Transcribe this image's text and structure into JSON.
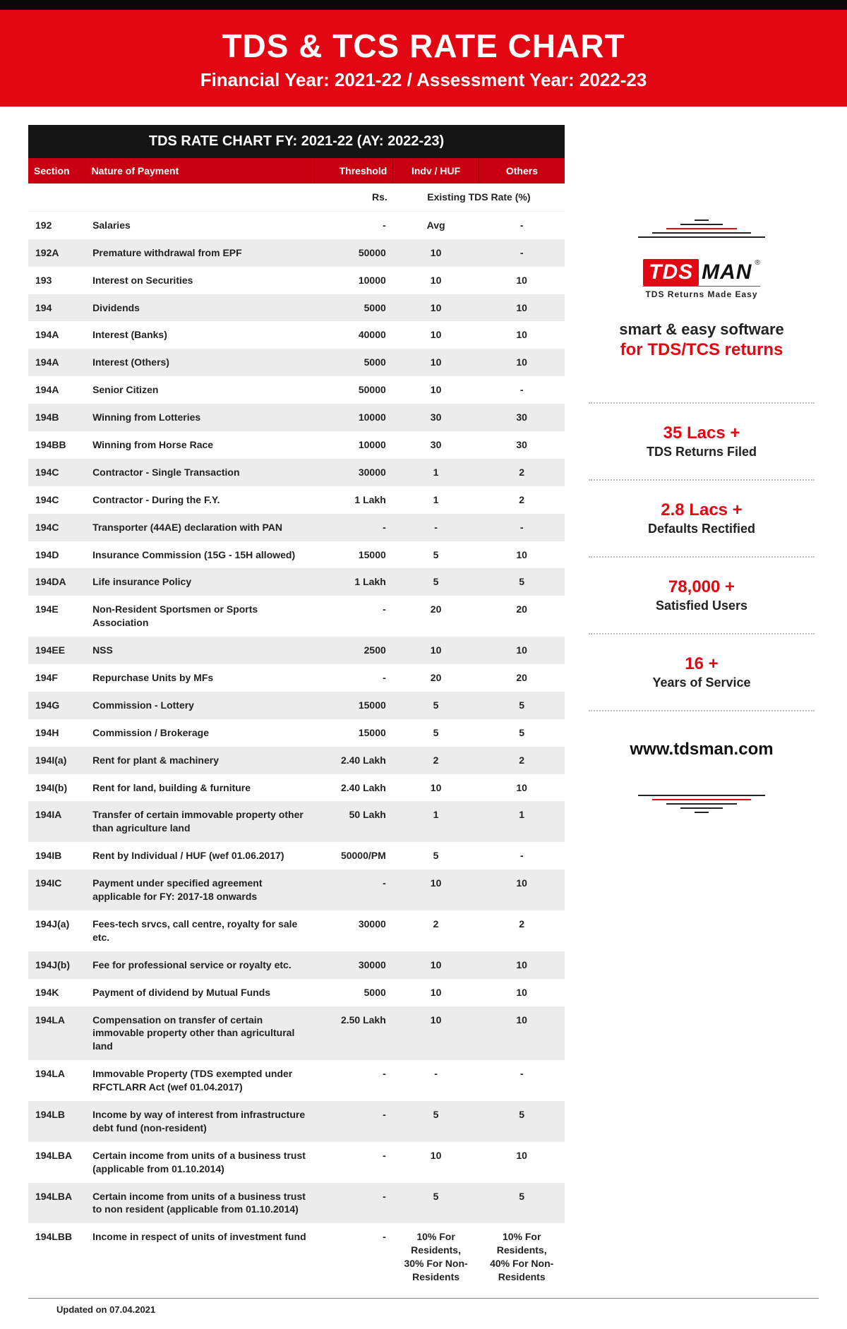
{
  "colors": {
    "brand_red": "#e30613",
    "header_black": "#141414",
    "row_alt": "#ececec",
    "thead_red": "#c90012"
  },
  "banner": {
    "title": "TDS & TCS RATE CHART",
    "subtitle": "Financial Year: 2021-22 / Assessment Year: 2022-23"
  },
  "table": {
    "title": "TDS RATE CHART FY: 2021-22 (AY: 2022-23)",
    "columns": [
      "Section",
      "Nature of Payment",
      "Threshold",
      "Indv / HUF",
      "Others"
    ],
    "subhead": {
      "threshold": "Rs.",
      "rates": "Existing TDS Rate (%)"
    },
    "rows": [
      {
        "s": "192",
        "n": "Salaries",
        "t": "-",
        "i": "Avg",
        "o": "-"
      },
      {
        "s": "192A",
        "n": "Premature withdrawal from EPF",
        "t": "50000",
        "i": "10",
        "o": "-"
      },
      {
        "s": "193",
        "n": "Interest on Securities",
        "t": "10000",
        "i": "10",
        "o": "10"
      },
      {
        "s": "194",
        "n": "Dividends",
        "t": "5000",
        "i": "10",
        "o": "10"
      },
      {
        "s": "194A",
        "n": "Interest (Banks)",
        "t": "40000",
        "i": "10",
        "o": "10"
      },
      {
        "s": "194A",
        "n": "Interest (Others)",
        "t": "5000",
        "i": "10",
        "o": "10"
      },
      {
        "s": "194A",
        "n": "Senior Citizen",
        "t": "50000",
        "i": "10",
        "o": "-"
      },
      {
        "s": "194B",
        "n": "Winning from Lotteries",
        "t": "10000",
        "i": "30",
        "o": "30"
      },
      {
        "s": "194BB",
        "n": "Winning from Horse Race",
        "t": "10000",
        "i": "30",
        "o": "30"
      },
      {
        "s": "194C",
        "n": "Contractor - Single Transaction",
        "t": "30000",
        "i": "1",
        "o": "2"
      },
      {
        "s": "194C",
        "n": "Contractor - During the F.Y.",
        "t": "1 Lakh",
        "i": "1",
        "o": "2"
      },
      {
        "s": "194C",
        "n": "Transporter (44AE) declaration with PAN",
        "t": "-",
        "i": "-",
        "o": "-"
      },
      {
        "s": "194D",
        "n": "Insurance Commission (15G - 15H allowed)",
        "t": "15000",
        "i": "5",
        "o": "10"
      },
      {
        "s": "194DA",
        "n": "Life insurance Policy",
        "t": "1 Lakh",
        "i": "5",
        "o": "5"
      },
      {
        "s": "194E",
        "n": "Non-Resident Sportsmen or Sports Association",
        "t": "-",
        "i": "20",
        "o": "20"
      },
      {
        "s": "194EE",
        "n": "NSS",
        "t": "2500",
        "i": "10",
        "o": "10"
      },
      {
        "s": "194F",
        "n": "Repurchase Units by MFs",
        "t": "-",
        "i": "20",
        "o": "20"
      },
      {
        "s": "194G",
        "n": "Commission - Lottery",
        "t": "15000",
        "i": "5",
        "o": "5"
      },
      {
        "s": "194H",
        "n": "Commission / Brokerage",
        "t": "15000",
        "i": "5",
        "o": "5"
      },
      {
        "s": "194I(a)",
        "n": "Rent for plant & machinery",
        "t": "2.40 Lakh",
        "i": "2",
        "o": "2"
      },
      {
        "s": "194I(b)",
        "n": "Rent for land, building & furniture",
        "t": "2.40 Lakh",
        "i": "10",
        "o": "10"
      },
      {
        "s": "194IA",
        "n": "Transfer of certain immovable property other than agriculture land",
        "t": "50 Lakh",
        "i": "1",
        "o": "1"
      },
      {
        "s": "194IB",
        "n": "Rent by Individual / HUF (wef 01.06.2017)",
        "t": "50000/PM",
        "i": "5",
        "o": "-"
      },
      {
        "s": "194IC",
        "n": "Payment under specified agreement applicable for FY: 2017-18 onwards",
        "t": "-",
        "i": "10",
        "o": "10"
      },
      {
        "s": "194J(a)",
        "n": "Fees-tech srvcs, call centre, royalty for sale etc.",
        "t": "30000",
        "i": "2",
        "o": "2"
      },
      {
        "s": "194J(b)",
        "n": "Fee for professional service or royalty etc.",
        "t": "30000",
        "i": "10",
        "o": "10"
      },
      {
        "s": "194K",
        "n": "Payment of dividend by Mutual Funds",
        "t": "5000",
        "i": "10",
        "o": "10"
      },
      {
        "s": "194LA",
        "n": "Compensation on transfer of certain immovable property other than agricultural land",
        "t": "2.50 Lakh",
        "i": "10",
        "o": "10"
      },
      {
        "s": "194LA",
        "n": "Immovable Property (TDS exempted under RFCTLARR Act (wef 01.04.2017)",
        "t": "-",
        "i": "-",
        "o": "-"
      },
      {
        "s": "194LB",
        "n": "Income by way of interest from infrastructure debt fund (non-resident)",
        "t": "-",
        "i": "5",
        "o": "5"
      },
      {
        "s": "194LBA",
        "n": "Certain income from units of a business trust (applicable from 01.10.2014)",
        "t": "-",
        "i": "10",
        "o": "10"
      },
      {
        "s": "194LBA",
        "n": "Certain income from units of a business trust to non resident (applicable from 01.10.2014)",
        "t": "-",
        "i": "5",
        "o": "5"
      },
      {
        "s": "194LBB",
        "n": "Income in respect of units of investment fund",
        "t": "-",
        "i": "10% For Residents, 30% For Non-Residents",
        "o": "10% For Residents, 40% For Non-Residents"
      }
    ]
  },
  "sidebar": {
    "logo": {
      "tds": "TDS",
      "man": "MAN",
      "reg": "®",
      "tag": "TDS Returns Made Easy"
    },
    "tagline1": "smart & easy software",
    "tagline2": "for TDS/TCS returns",
    "stats": [
      {
        "num": "35 Lacs +",
        "lbl": "TDS Returns Filed"
      },
      {
        "num": "2.8 Lacs +",
        "lbl": "Defaults Rectified"
      },
      {
        "num": "78,000 +",
        "lbl": "Satisfied Users"
      },
      {
        "num": "16 +",
        "lbl": "Years of Service"
      }
    ],
    "website": "www.tdsman.com",
    "pyramid_widths_up": [
      20,
      60,
      100,
      140,
      180
    ],
    "pyramid_widths_down": [
      180,
      140,
      100,
      60,
      20
    ]
  },
  "footer": {
    "updated": "Updated on 07.04.2021"
  }
}
